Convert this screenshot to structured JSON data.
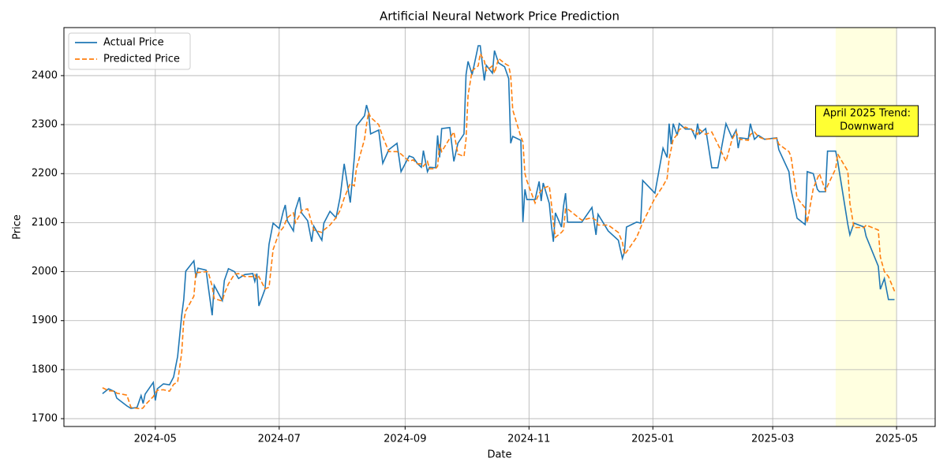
{
  "chart_data": {
    "type": "line",
    "title": "Artificial Neural Network Price Prediction",
    "x_label": "Date",
    "y_label": "Price",
    "x": [
      "2024-04-05",
      "2024-04-08",
      "2024-04-11",
      "2024-04-12",
      "2024-04-17",
      "2024-04-19",
      "2024-04-22",
      "2024-04-24",
      "2024-04-25",
      "2024-04-26",
      "2024-04-30",
      "2024-05-01",
      "2024-05-02",
      "2024-05-05",
      "2024-05-08",
      "2024-05-10",
      "2024-05-12",
      "2024-05-14",
      "2024-05-15",
      "2024-05-16",
      "2024-05-20",
      "2024-05-21",
      "2024-05-22",
      "2024-05-26",
      "2024-05-27",
      "2024-05-29",
      "2024-05-30",
      "2024-06-03",
      "2024-06-04",
      "2024-06-06",
      "2024-06-09",
      "2024-06-11",
      "2024-06-14",
      "2024-06-18",
      "2024-06-19",
      "2024-06-20",
      "2024-06-21",
      "2024-06-24",
      "2024-06-26",
      "2024-06-28",
      "2024-07-01",
      "2024-07-03",
      "2024-07-04",
      "2024-07-05",
      "2024-07-08",
      "2024-07-09",
      "2024-07-11",
      "2024-07-12",
      "2024-07-15",
      "2024-07-17",
      "2024-07-18",
      "2024-07-22",
      "2024-07-23",
      "2024-07-26",
      "2024-07-29",
      "2024-07-31",
      "2024-08-02",
      "2024-08-05",
      "2024-08-07",
      "2024-08-08",
      "2024-08-12",
      "2024-08-13",
      "2024-08-14",
      "2024-08-15",
      "2024-08-19",
      "2024-08-21",
      "2024-08-24",
      "2024-08-28",
      "2024-08-30",
      "2024-09-03",
      "2024-09-05",
      "2024-09-07",
      "2024-09-09",
      "2024-09-10",
      "2024-09-12",
      "2024-09-13",
      "2024-09-16",
      "2024-09-17",
      "2024-09-18",
      "2024-09-19",
      "2024-09-23",
      "2024-09-25",
      "2024-09-27",
      "2024-09-30",
      "2024-10-01",
      "2024-10-02",
      "2024-10-04",
      "2024-10-07",
      "2024-10-08",
      "2024-10-10",
      "2024-10-11",
      "2024-10-14",
      "2024-10-15",
      "2024-10-17",
      "2024-10-20",
      "2024-10-22",
      "2024-10-23",
      "2024-10-24",
      "2024-10-28",
      "2024-10-29",
      "2024-10-30",
      "2024-10-31",
      "2024-11-04",
      "2024-11-06",
      "2024-11-07",
      "2024-11-08",
      "2024-11-11",
      "2024-11-12",
      "2024-11-13",
      "2024-11-14",
      "2024-11-17",
      "2024-11-18",
      "2024-11-19",
      "2024-11-20",
      "2024-11-27",
      "2024-12-02",
      "2024-12-04",
      "2024-12-05",
      "2024-12-10",
      "2024-12-15",
      "2024-12-17",
      "2024-12-18",
      "2024-12-19",
      "2024-12-24",
      "2024-12-26",
      "2024-12-27",
      "2025-01-02",
      "2025-01-06",
      "2025-01-08",
      "2025-01-09",
      "2025-01-10",
      "2025-01-11",
      "2025-01-13",
      "2025-01-14",
      "2025-01-17",
      "2025-01-20",
      "2025-01-22",
      "2025-01-23",
      "2025-01-24",
      "2025-01-27",
      "2025-01-30",
      "2025-02-02",
      "2025-02-06",
      "2025-02-09",
      "2025-02-11",
      "2025-02-12",
      "2025-02-13",
      "2025-02-17",
      "2025-02-18",
      "2025-02-20",
      "2025-02-22",
      "2025-02-25",
      "2025-03-03",
      "2025-03-04",
      "2025-03-09",
      "2025-03-10",
      "2025-03-13",
      "2025-03-17",
      "2025-03-18",
      "2025-03-21",
      "2025-03-23",
      "2025-03-24",
      "2025-03-27",
      "2025-03-28",
      "2025-04-01",
      "2025-04-02",
      "2025-04-07",
      "2025-04-08",
      "2025-04-10",
      "2025-04-15",
      "2025-04-16",
      "2025-04-22",
      "2025-04-23",
      "2025-04-25",
      "2025-04-27",
      "2025-04-30"
    ],
    "series": [
      {
        "name": "Actual Price",
        "color": "#1f77b4",
        "linestyle": "solid",
        "values": [
          1751,
          1761,
          1755,
          1742,
          1726,
          1721,
          1723,
          1747,
          1731,
          1750,
          1774,
          1737,
          1761,
          1771,
          1769,
          1785,
          1827,
          1911,
          1943,
          2001,
          2022,
          1988,
          2007,
          2003,
          1972,
          1911,
          1972,
          1941,
          1982,
          2006,
          2000,
          1986,
          1994,
          1996,
          1980,
          1996,
          1930,
          1964,
          2056,
          2099,
          2088,
          2123,
          2136,
          2104,
          2083,
          2126,
          2152,
          2120,
          2104,
          2061,
          2093,
          2064,
          2099,
          2123,
          2110,
          2152,
          2220,
          2141,
          2233,
          2297,
          2318,
          2340,
          2325,
          2281,
          2289,
          2221,
          2249,
          2262,
          2204,
          2236,
          2233,
          2221,
          2213,
          2247,
          2204,
          2213,
          2212,
          2278,
          2233,
          2292,
          2294,
          2225,
          2262,
          2281,
          2402,
          2429,
          2402,
          2461,
          2461,
          2390,
          2421,
          2405,
          2451,
          2426,
          2418,
          2394,
          2262,
          2276,
          2268,
          2101,
          2168,
          2147,
          2147,
          2184,
          2144,
          2181,
          2139,
          2096,
          2061,
          2120,
          2091,
          2133,
          2160,
          2101,
          2101,
          2131,
          2075,
          2117,
          2083,
          2064,
          2027,
          2040,
          2091,
          2101,
          2099,
          2186,
          2160,
          2252,
          2233,
          2302,
          2260,
          2302,
          2278,
          2302,
          2291,
          2291,
          2273,
          2302,
          2281,
          2292,
          2212,
          2212,
          2302,
          2273,
          2289,
          2252,
          2273,
          2271,
          2302,
          2270,
          2278,
          2270,
          2273,
          2249,
          2204,
          2168,
          2109,
          2096,
          2204,
          2200,
          2168,
          2163,
          2163,
          2246,
          2246,
          2225,
          2096,
          2075,
          2099,
          2091,
          2072,
          2011,
          1964,
          1986,
          1943,
          1943
        ]
      },
      {
        "name": "Predicted Price",
        "color": "#ff7f0e",
        "linestyle": "dashed",
        "values": [
          1763,
          1757,
          1756,
          1752,
          1748,
          1723,
          1721,
          1720,
          1722,
          1728,
          1745,
          1752,
          1758,
          1759,
          1756,
          1770,
          1775,
          1835,
          1900,
          1920,
          1950,
          2000,
          1998,
          2000,
          2000,
          1970,
          1945,
          1940,
          1955,
          1975,
          1995,
          1996,
          1990,
          1990,
          1994,
          1985,
          1990,
          1965,
          1968,
          2045,
          2080,
          2090,
          2100,
          2110,
          2120,
          2100,
          2115,
          2125,
          2128,
          2100,
          2085,
          2080,
          2085,
          2095,
          2110,
          2125,
          2150,
          2180,
          2175,
          2210,
          2270,
          2300,
          2325,
          2315,
          2300,
          2275,
          2245,
          2245,
          2240,
          2225,
          2228,
          2220,
          2220,
          2215,
          2225,
          2210,
          2210,
          2215,
          2260,
          2245,
          2272,
          2285,
          2240,
          2235,
          2270,
          2360,
          2410,
          2420,
          2445,
          2430,
          2410,
          2420,
          2405,
          2435,
          2425,
          2420,
          2400,
          2330,
          2275,
          2265,
          2200,
          2185,
          2140,
          2160,
          2165,
          2170,
          2175,
          2140,
          2100,
          2070,
          2080,
          2085,
          2128,
          2128,
          2105,
          2110,
          2105,
          2095,
          2095,
          2080,
          2060,
          2035,
          2040,
          2070,
          2090,
          2100,
          2150,
          2175,
          2190,
          2230,
          2250,
          2270,
          2280,
          2290,
          2295,
          2290,
          2285,
          2280,
          2290,
          2280,
          2285,
          2260,
          2225,
          2270,
          2285,
          2275,
          2270,
          2268,
          2280,
          2285,
          2275,
          2270,
          2272,
          2260,
          2245,
          2235,
          2150,
          2130,
          2100,
          2170,
          2190,
          2200,
          2165,
          2175,
          2210,
          2240,
          2205,
          2140,
          2090,
          2090,
          2095,
          2085,
          2030,
          2000,
          1990,
          1960
        ]
      }
    ],
    "xlim": [
      "2024-03-17",
      "2025-05-20"
    ],
    "xticks": [
      "2024-05",
      "2024-07",
      "2024-09",
      "2024-11",
      "2025-01",
      "2025-03",
      "2025-05"
    ],
    "ylim": [
      1684,
      2498
    ],
    "yticks": [
      1700,
      1800,
      1900,
      2000,
      2100,
      2200,
      2300,
      2400
    ],
    "grid": true,
    "legend": "upper left",
    "highlight": {
      "start": "2025-04-01",
      "end": "2025-05-01",
      "color": "#ffffe0"
    },
    "annotation": {
      "text": [
        "April 2025 Trend:",
        "Downward"
      ],
      "color": "#ffff33"
    }
  }
}
